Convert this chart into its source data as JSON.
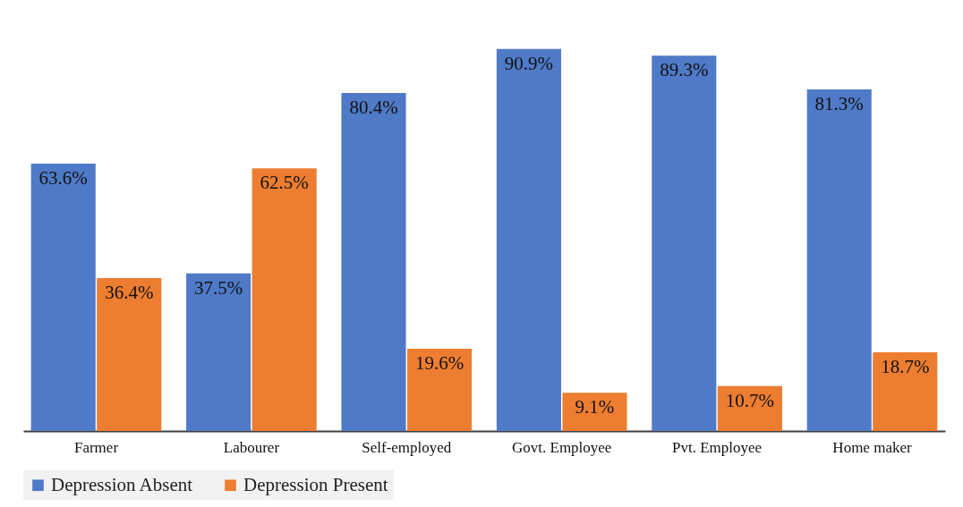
{
  "chart_data": {
    "type": "bar",
    "categories": [
      "Farmer",
      "Labourer",
      "Self-employed",
      "Govt. Employee",
      "Pvt. Employee",
      "Home maker"
    ],
    "series": [
      {
        "name": "Depression Absent",
        "color": "#4f7ac7",
        "values": [
          63.6,
          37.5,
          80.4,
          90.9,
          89.3,
          81.3
        ],
        "value_labels": [
          "63.6%",
          "37.5%",
          "80.4%",
          "90.9%",
          "89.3%",
          "81.3%"
        ]
      },
      {
        "name": "Depression Present",
        "color": "#ed7d31",
        "values": [
          36.4,
          62.5,
          19.6,
          9.1,
          10.7,
          18.7
        ],
        "value_labels": [
          "36.4%",
          "62.5%",
          "19.6%",
          "9.1%",
          "10.7%",
          "18.7%"
        ]
      }
    ],
    "legend": "bottom",
    "grid": false
  }
}
